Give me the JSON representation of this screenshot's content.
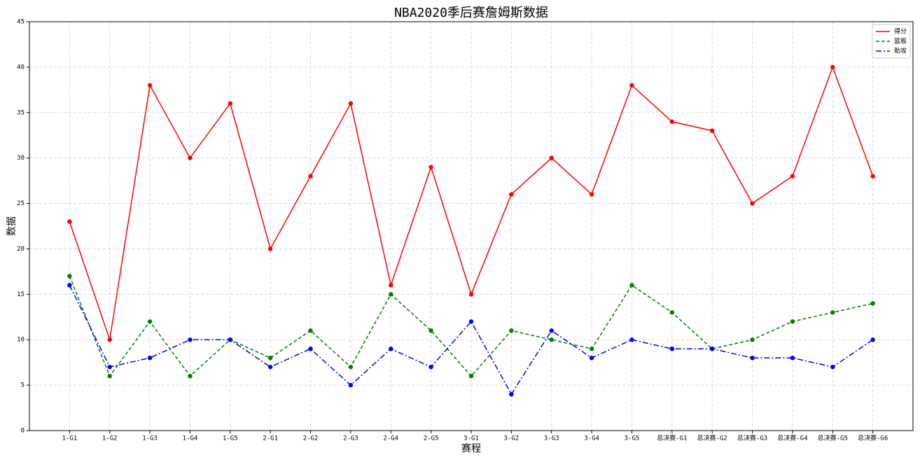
{
  "chart_data": {
    "type": "line",
    "title": "NBA2020季后赛詹姆斯数据",
    "x_label": "赛程",
    "y_label": "数据",
    "categories": [
      "1-G1",
      "1-G2",
      "1-G3",
      "1-G4",
      "1-G5",
      "2-G1",
      "2-G2",
      "2-G3",
      "2-G4",
      "2-G5",
      "3-G1",
      "3-G2",
      "3-G3",
      "3-G4",
      "3-G5",
      "总决赛-G1",
      "总决赛-G2",
      "总决赛-G3",
      "总决赛-G4",
      "总决赛-G5",
      "总决赛-G6"
    ],
    "series": [
      {
        "name": "得分",
        "color": "#ff0000",
        "dash": "solid",
        "values": [
          23,
          10,
          38,
          30,
          36,
          20,
          28,
          36,
          16,
          29,
          15,
          26,
          30,
          26,
          38,
          34,
          33,
          25,
          28,
          40,
          28
        ]
      },
      {
        "name": "篮板",
        "color": "#008000",
        "dash": "dashed",
        "values": [
          17,
          6,
          12,
          6,
          10,
          8,
          11,
          7,
          15,
          11,
          6,
          11,
          10,
          9,
          16,
          13,
          9,
          10,
          12,
          13,
          14
        ]
      },
      {
        "name": "助攻",
        "color": "#0000ff",
        "dash": "dashdot",
        "values": [
          16,
          7,
          8,
          10,
          10,
          7,
          9,
          5,
          9,
          7,
          12,
          4,
          11,
          8,
          10,
          9,
          9,
          8,
          8,
          7,
          10
        ]
      }
    ],
    "ylim": [
      0,
      45
    ],
    "yticks": [
      0,
      5,
      10,
      15,
      20,
      25,
      30,
      35,
      40,
      45
    ],
    "grid": true,
    "legend": "upper right"
  }
}
